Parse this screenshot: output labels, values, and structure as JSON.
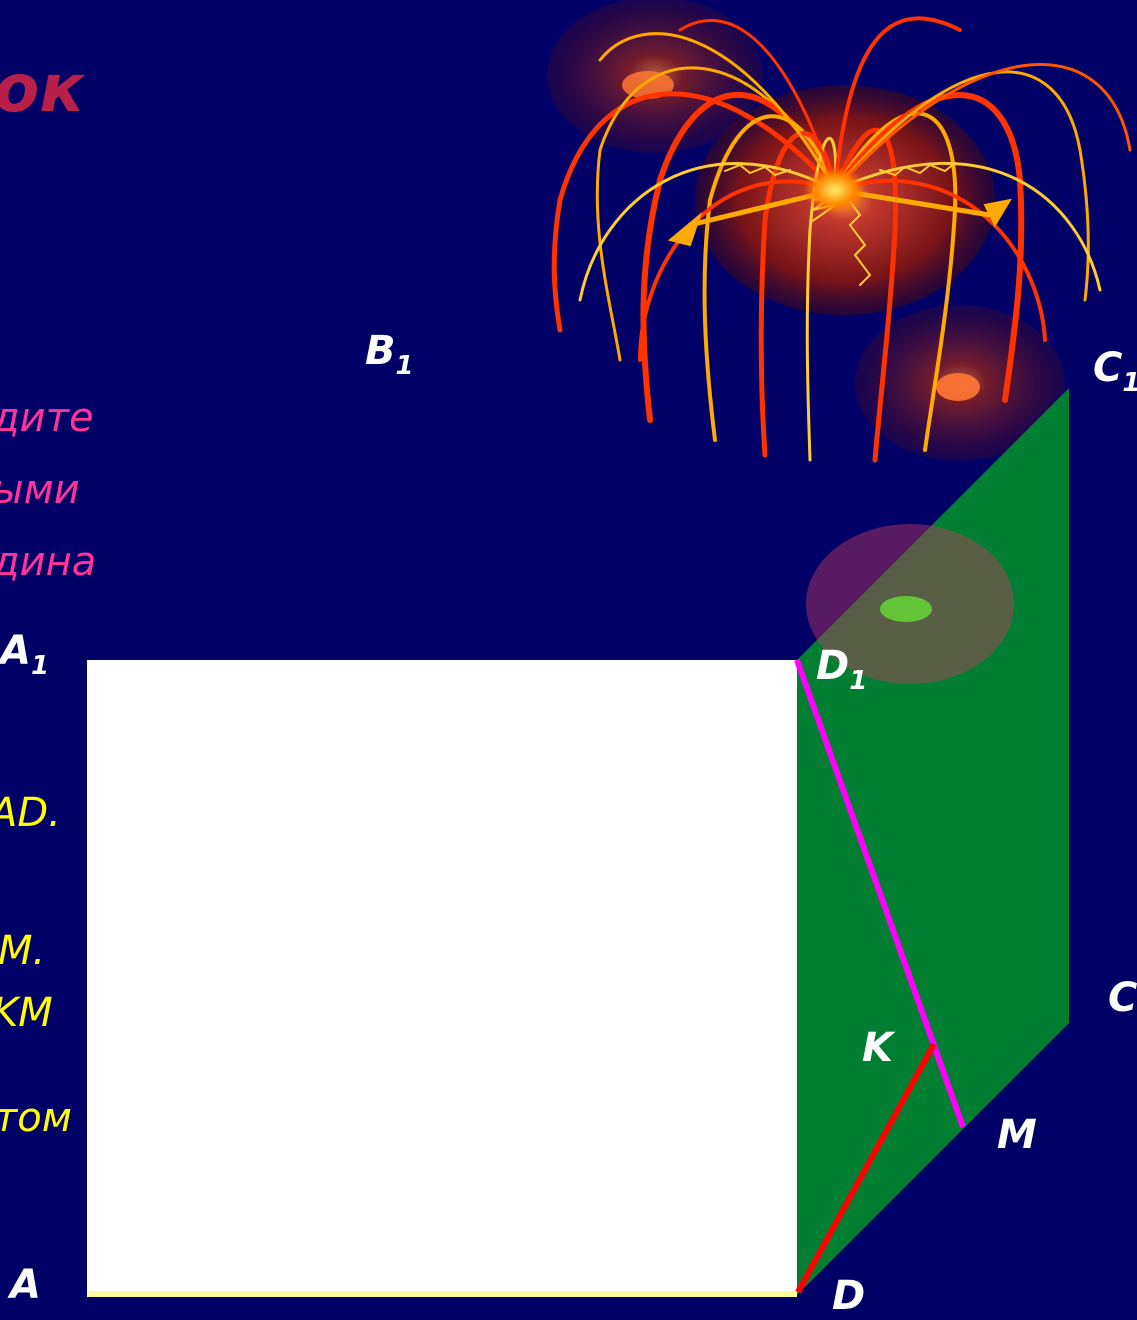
{
  "title": "ок",
  "text_lines": [
    "дите",
    "ыми",
    "дина"
  ],
  "fragments": {
    "ad": "AD.",
    "m": "M.",
    "km": "KM",
    "tom": "том"
  },
  "labels": {
    "B1": {
      "main": "B",
      "sub": "1"
    },
    "C1": {
      "main": "C",
      "sub": "1"
    },
    "A1": {
      "main": "A",
      "sub": "1"
    },
    "D1": {
      "main": "D",
      "sub": "1"
    },
    "C": "C",
    "K": "K",
    "M": "M",
    "A": "A",
    "D": "D"
  },
  "colors": {
    "background": "#000066",
    "face": "#ffffff",
    "plane": "#007f33",
    "segment_d1m": "#ff00ff",
    "segment_dk": "#ff0000",
    "edge_ad": "#ffff99",
    "title": "#b8204a",
    "task_text": "#ff3399",
    "fragment_text": "#ffff00"
  },
  "decoration": "fireworks"
}
